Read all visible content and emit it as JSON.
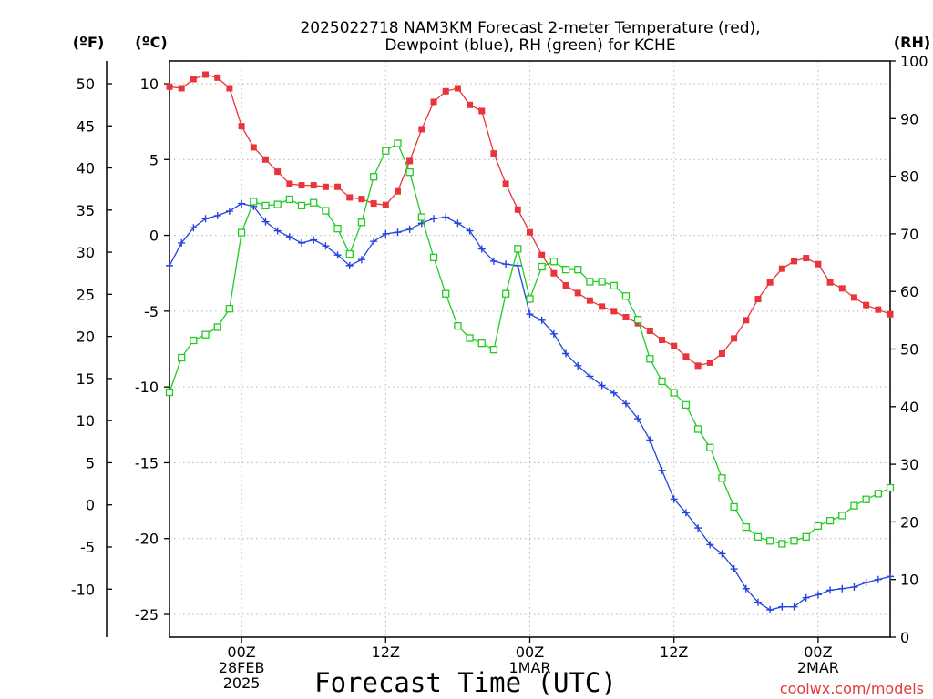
{
  "chart_data": {
    "type": "line",
    "title_lines": [
      "2025022718 NAM3KM Forecast 2-meter Temperature (red),",
      "Dewpoint (blue), RH (green) for KCHE"
    ],
    "xlabel": "Forecast Time (UTC)",
    "watermark": "coolwx.com/models",
    "unit_labels": {
      "fahrenheit": "(ºF)",
      "celsius": "(ºC)",
      "rh": "(RH)"
    },
    "x_ticks": [
      {
        "hour": 6,
        "lines": [
          "00Z",
          "28FEB",
          "2025"
        ]
      },
      {
        "hour": 18,
        "lines": [
          "12Z"
        ]
      },
      {
        "hour": 30,
        "lines": [
          "00Z",
          "1MAR"
        ]
      },
      {
        "hour": 42,
        "lines": [
          "12Z"
        ]
      },
      {
        "hour": 54,
        "lines": [
          "00Z",
          "2MAR"
        ]
      }
    ],
    "xlim": [
      0,
      60
    ],
    "celsius_ticks": [
      10,
      5,
      0,
      -5,
      -10,
      -15,
      -20,
      -25
    ],
    "fahrenheit_ticks": [
      50,
      45,
      40,
      35,
      30,
      25,
      20,
      15,
      10,
      5,
      0,
      -5,
      -10
    ],
    "rh_ticks": [
      100,
      90,
      80,
      70,
      60,
      50,
      40,
      30,
      20,
      10,
      0
    ],
    "ylim_celsius": [
      -26.5,
      11.5
    ],
    "ylim_rh": [
      0,
      100
    ],
    "grid": true,
    "series": [
      {
        "name": "Temperature",
        "unit": "°C",
        "color": "#e8343a",
        "marker": "filled-square",
        "x": [
          0,
          1,
          2,
          3,
          4,
          5,
          6,
          7,
          8,
          9,
          10,
          11,
          12,
          13,
          14,
          15,
          16,
          17,
          18,
          19,
          20,
          21,
          22,
          23,
          24,
          25,
          26,
          27,
          28,
          29,
          30,
          31,
          32,
          33,
          34,
          35,
          36,
          37,
          38,
          39,
          40,
          41,
          42,
          43,
          44,
          45,
          46,
          47,
          48,
          49,
          50,
          51,
          52,
          53,
          54,
          55,
          56,
          57,
          58,
          59,
          60
        ],
        "values": [
          9.8,
          9.7,
          10.3,
          10.6,
          10.4,
          9.7,
          7.2,
          5.8,
          5.0,
          4.2,
          3.4,
          3.3,
          3.3,
          3.2,
          3.2,
          2.5,
          2.4,
          2.1,
          2.0,
          2.9,
          4.9,
          7.0,
          8.8,
          9.5,
          9.7,
          8.6,
          8.2,
          5.4,
          3.4,
          1.7,
          0.2,
          -1.3,
          -2.5,
          -3.3,
          -3.8,
          -4.3,
          -4.7,
          -5.0,
          -5.4,
          -5.8,
          -6.3,
          -6.9,
          -7.3,
          -8.0,
          -8.6,
          -8.4,
          -7.8,
          -6.8,
          -5.6,
          -4.2,
          -3.1,
          -2.2,
          -1.7,
          -1.5,
          -1.9,
          -3.1,
          -3.5,
          -4.1,
          -4.6,
          -4.9,
          -5.2
        ]
      },
      {
        "name": "Dewpoint",
        "unit": "°C",
        "color": "#2244dd",
        "marker": "plus",
        "x": [
          0,
          1,
          2,
          3,
          4,
          5,
          6,
          7,
          8,
          9,
          10,
          11,
          12,
          13,
          14,
          15,
          16,
          17,
          18,
          19,
          20,
          21,
          22,
          23,
          24,
          25,
          26,
          27,
          28,
          29,
          30,
          31,
          32,
          33,
          34,
          35,
          36,
          37,
          38,
          39,
          40,
          41,
          42,
          43,
          44,
          45,
          46,
          47,
          48,
          49,
          50,
          51,
          52,
          53,
          54,
          55,
          56,
          57,
          58,
          59,
          60
        ],
        "values": [
          -2.0,
          -0.5,
          0.5,
          1.1,
          1.3,
          1.6,
          2.1,
          1.9,
          0.9,
          0.3,
          -0.1,
          -0.5,
          -0.3,
          -0.7,
          -1.3,
          -2.0,
          -1.6,
          -0.4,
          0.1,
          0.2,
          0.4,
          0.8,
          1.1,
          1.2,
          0.8,
          0.3,
          -0.9,
          -1.7,
          -1.9,
          -2.0,
          -5.2,
          -5.6,
          -6.5,
          -7.8,
          -8.6,
          -9.3,
          -9.9,
          -10.4,
          -11.1,
          -12.1,
          -13.5,
          -15.5,
          -17.4,
          -18.3,
          -19.3,
          -20.4,
          -21.0,
          -22.0,
          -23.3,
          -24.2,
          -24.7,
          -24.5,
          -24.5,
          -23.9,
          -23.7,
          -23.4,
          -23.3,
          -23.2,
          -22.9,
          -22.7,
          -22.5
        ]
      },
      {
        "name": "RH",
        "unit": "%",
        "color": "#22cc22",
        "marker": "open-square",
        "x": [
          0,
          1,
          2,
          3,
          4,
          5,
          6,
          7,
          8,
          9,
          10,
          11,
          12,
          13,
          14,
          15,
          16,
          17,
          18,
          19,
          20,
          21,
          22,
          23,
          24,
          25,
          26,
          27,
          28,
          29,
          30,
          31,
          32,
          33,
          34,
          35,
          36,
          37,
          38,
          39,
          40,
          41,
          42,
          43,
          44,
          45,
          46,
          47,
          48,
          49,
          50,
          51,
          52,
          53,
          54,
          55,
          56,
          57,
          58,
          59,
          60
        ],
        "values": [
          42.5,
          48.5,
          51.5,
          52.5,
          53.8,
          57.0,
          70.2,
          75.6,
          74.9,
          75.1,
          76.0,
          74.9,
          75.4,
          74.0,
          70.9,
          66.5,
          72.0,
          79.9,
          84.4,
          85.7,
          80.7,
          72.9,
          65.9,
          59.6,
          54.0,
          51.9,
          51.0,
          49.9,
          59.6,
          67.4,
          58.7,
          64.3,
          65.2,
          63.8,
          63.8,
          61.7,
          61.7,
          61.0,
          59.2,
          55.1,
          48.3,
          44.4,
          42.4,
          40.3,
          36.1,
          32.9,
          27.6,
          22.6,
          19.1,
          17.4,
          16.7,
          16.2,
          16.7,
          17.4,
          19.3,
          20.2,
          21.1,
          22.8,
          23.9,
          24.9,
          25.9
        ]
      }
    ]
  }
}
